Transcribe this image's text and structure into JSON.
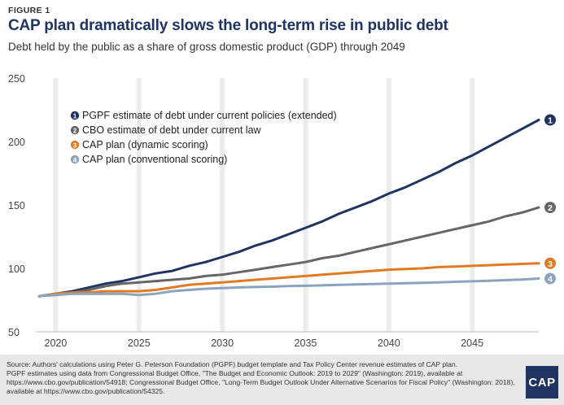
{
  "header": {
    "figure_label": "FIGURE 1",
    "title": "CAP plan dramatically slows the long-term rise in public debt",
    "subtitle": "Debt held by the public as a share of gross domestic product (GDP) through 2049"
  },
  "chart_data": {
    "type": "line",
    "title": "CAP plan dramatically slows the long-term rise in public debt",
    "subtitle": "Debt held by the public as a share of gross domestic product (GDP) through 2049",
    "xlabel": "",
    "ylabel": "",
    "xlim": [
      2019,
      2049
    ],
    "ylim": [
      50,
      250
    ],
    "x_ticks": [
      2020,
      2025,
      2030,
      2035,
      2040,
      2045
    ],
    "y_ticks": [
      50,
      100,
      150,
      200,
      250
    ],
    "grid": "vertical",
    "legend_position": "top-left",
    "series": [
      {
        "name": "PGPF estimate of debt under current policies (extended)",
        "marker": "1",
        "color": "#1f3461",
        "x": [
          2019,
          2020,
          2021,
          2022,
          2023,
          2024,
          2025,
          2026,
          2027,
          2028,
          2029,
          2030,
          2031,
          2032,
          2033,
          2034,
          2035,
          2036,
          2037,
          2038,
          2039,
          2040,
          2041,
          2042,
          2043,
          2044,
          2045,
          2046,
          2047,
          2048,
          2049
        ],
        "values": [
          78,
          80,
          82,
          85,
          88,
          90,
          93,
          96,
          98,
          102,
          105,
          109,
          113,
          118,
          122,
          127,
          132,
          137,
          143,
          148,
          153,
          159,
          164,
          170,
          176,
          183,
          189,
          196,
          203,
          210,
          217
        ]
      },
      {
        "name": "CBO estimate of debt under current law",
        "marker": "2",
        "color": "#666666",
        "x": [
          2019,
          2020,
          2021,
          2022,
          2023,
          2024,
          2025,
          2026,
          2027,
          2028,
          2029,
          2030,
          2031,
          2032,
          2033,
          2034,
          2035,
          2036,
          2037,
          2038,
          2039,
          2040,
          2041,
          2042,
          2043,
          2044,
          2045,
          2046,
          2047,
          2048,
          2049
        ],
        "values": [
          78,
          80,
          81,
          83,
          86,
          88,
          89,
          90,
          91,
          92,
          94,
          95,
          97,
          99,
          101,
          103,
          105,
          108,
          110,
          113,
          116,
          119,
          122,
          125,
          128,
          131,
          134,
          137,
          141,
          144,
          148
        ]
      },
      {
        "name": "CAP plan (dynamic scoring)",
        "marker": "3",
        "color": "#e07b24",
        "x": [
          2019,
          2020,
          2021,
          2022,
          2023,
          2024,
          2025,
          2026,
          2027,
          2028,
          2029,
          2030,
          2031,
          2032,
          2033,
          2034,
          2035,
          2036,
          2037,
          2038,
          2039,
          2040,
          2041,
          2042,
          2043,
          2044,
          2045,
          2046,
          2047,
          2048,
          2049
        ],
        "values": [
          78,
          80,
          81,
          81,
          82,
          82,
          82,
          83,
          85,
          87,
          88,
          89,
          90,
          91,
          92,
          93,
          94,
          95,
          96,
          97,
          98,
          99,
          99.5,
          100,
          101,
          101.5,
          102,
          102.5,
          103,
          103.5,
          104
        ]
      },
      {
        "name": "CAP plan (conventional scoring)",
        "marker": "4",
        "color": "#8da3bd",
        "x": [
          2019,
          2020,
          2021,
          2022,
          2023,
          2024,
          2025,
          2026,
          2027,
          2028,
          2029,
          2030,
          2031,
          2032,
          2033,
          2034,
          2035,
          2036,
          2037,
          2038,
          2039,
          2040,
          2041,
          2042,
          2043,
          2044,
          2045,
          2046,
          2047,
          2048,
          2049
        ],
        "values": [
          78,
          79,
          80,
          80,
          80,
          80,
          79,
          80,
          82,
          83,
          84,
          84.5,
          85,
          85.3,
          85.6,
          86,
          86.3,
          86.6,
          87,
          87.3,
          87.6,
          88,
          88.3,
          88.6,
          89,
          89.4,
          89.8,
          90.2,
          90.7,
          91.2,
          92
        ]
      }
    ]
  },
  "source": {
    "line1": "Source: Authors' calculations using Peter G. Peterson Foundation (PGPF) budget template and Tax Policy Center revenue estimates of CAP plan.",
    "line2": "PGPF estimates using data from Congressional Budget Office, \"The Budget and Economic Outlook: 2019 to 2029\" (Washington: 2019), available at https://www.cbo.gov/publication/54918; Congressional Budget Office, \"Long-Term Budget Outlook Under Alternative Scenarios for Fiscal Policy\" (Washington: 2018), available at https://www.cbo.gov/publication/54325."
  },
  "logo": {
    "text": "CAP",
    "color": "#1f3461"
  }
}
